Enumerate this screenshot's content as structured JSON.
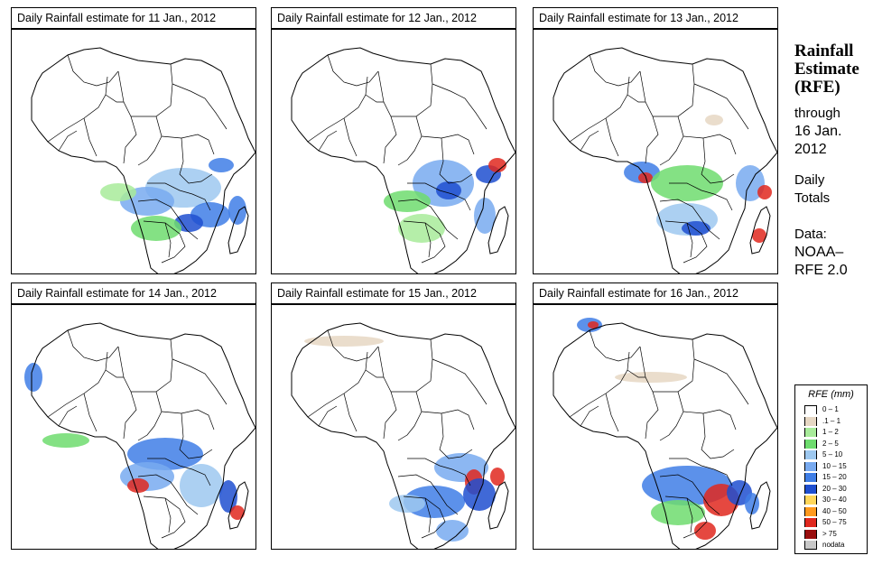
{
  "panels": [
    {
      "title": "Daily Rainfall estimate for  11 Jan., 2012",
      "date": "11 Jan., 2012"
    },
    {
      "title": "Daily Rainfall estimate for  12 Jan., 2012",
      "date": "12 Jan., 2012"
    },
    {
      "title": "Daily Rainfall estimate for  13 Jan., 2012",
      "date": "13 Jan., 2012"
    },
    {
      "title": "Daily Rainfall estimate for  14 Jan., 2012",
      "date": "14 Jan., 2012"
    },
    {
      "title": "Daily Rainfall estimate for  15 Jan., 2012",
      "date": "15 Jan., 2012"
    },
    {
      "title": "Daily Rainfall estimate for  16 Jan., 2012",
      "date": "16 Jan., 2012"
    }
  ],
  "sidebar": {
    "title_line1": "Rainfall",
    "title_line2": "Estimate",
    "title_line3": "(RFE)",
    "through_label": "through",
    "through_date_1": "16 Jan.",
    "through_date_2": "2012",
    "period_1": "Daily",
    "period_2": "Totals",
    "data_label": "Data:",
    "data_source_1": "NOAA–",
    "data_source_2": "RFE 2.0"
  },
  "legend": {
    "title": "RFE (mm)",
    "items": [
      {
        "label": "0 – 1",
        "color": "#ffffff"
      },
      {
        "label": ".1 – 1",
        "color": "#e6d7c3"
      },
      {
        "label": "1 – 2",
        "color": "#a8eb9a"
      },
      {
        "label": "2 – 5",
        "color": "#6edc6e"
      },
      {
        "label": "5 – 10",
        "color": "#9dc8f0"
      },
      {
        "label": "10 – 15",
        "color": "#78aaf0"
      },
      {
        "label": "15 – 20",
        "color": "#3f7ee6"
      },
      {
        "label": "20 – 30",
        "color": "#1f4fd0"
      },
      {
        "label": "30 – 40",
        "color": "#ffd75a"
      },
      {
        "label": "40 – 50",
        "color": "#ff9a1e"
      },
      {
        "label": "50 – 75",
        "color": "#e0281e"
      },
      {
        "label": "> 75",
        "color": "#9a0f0f"
      },
      {
        "label": "nodata",
        "color": "#c8c8c8"
      }
    ]
  }
}
